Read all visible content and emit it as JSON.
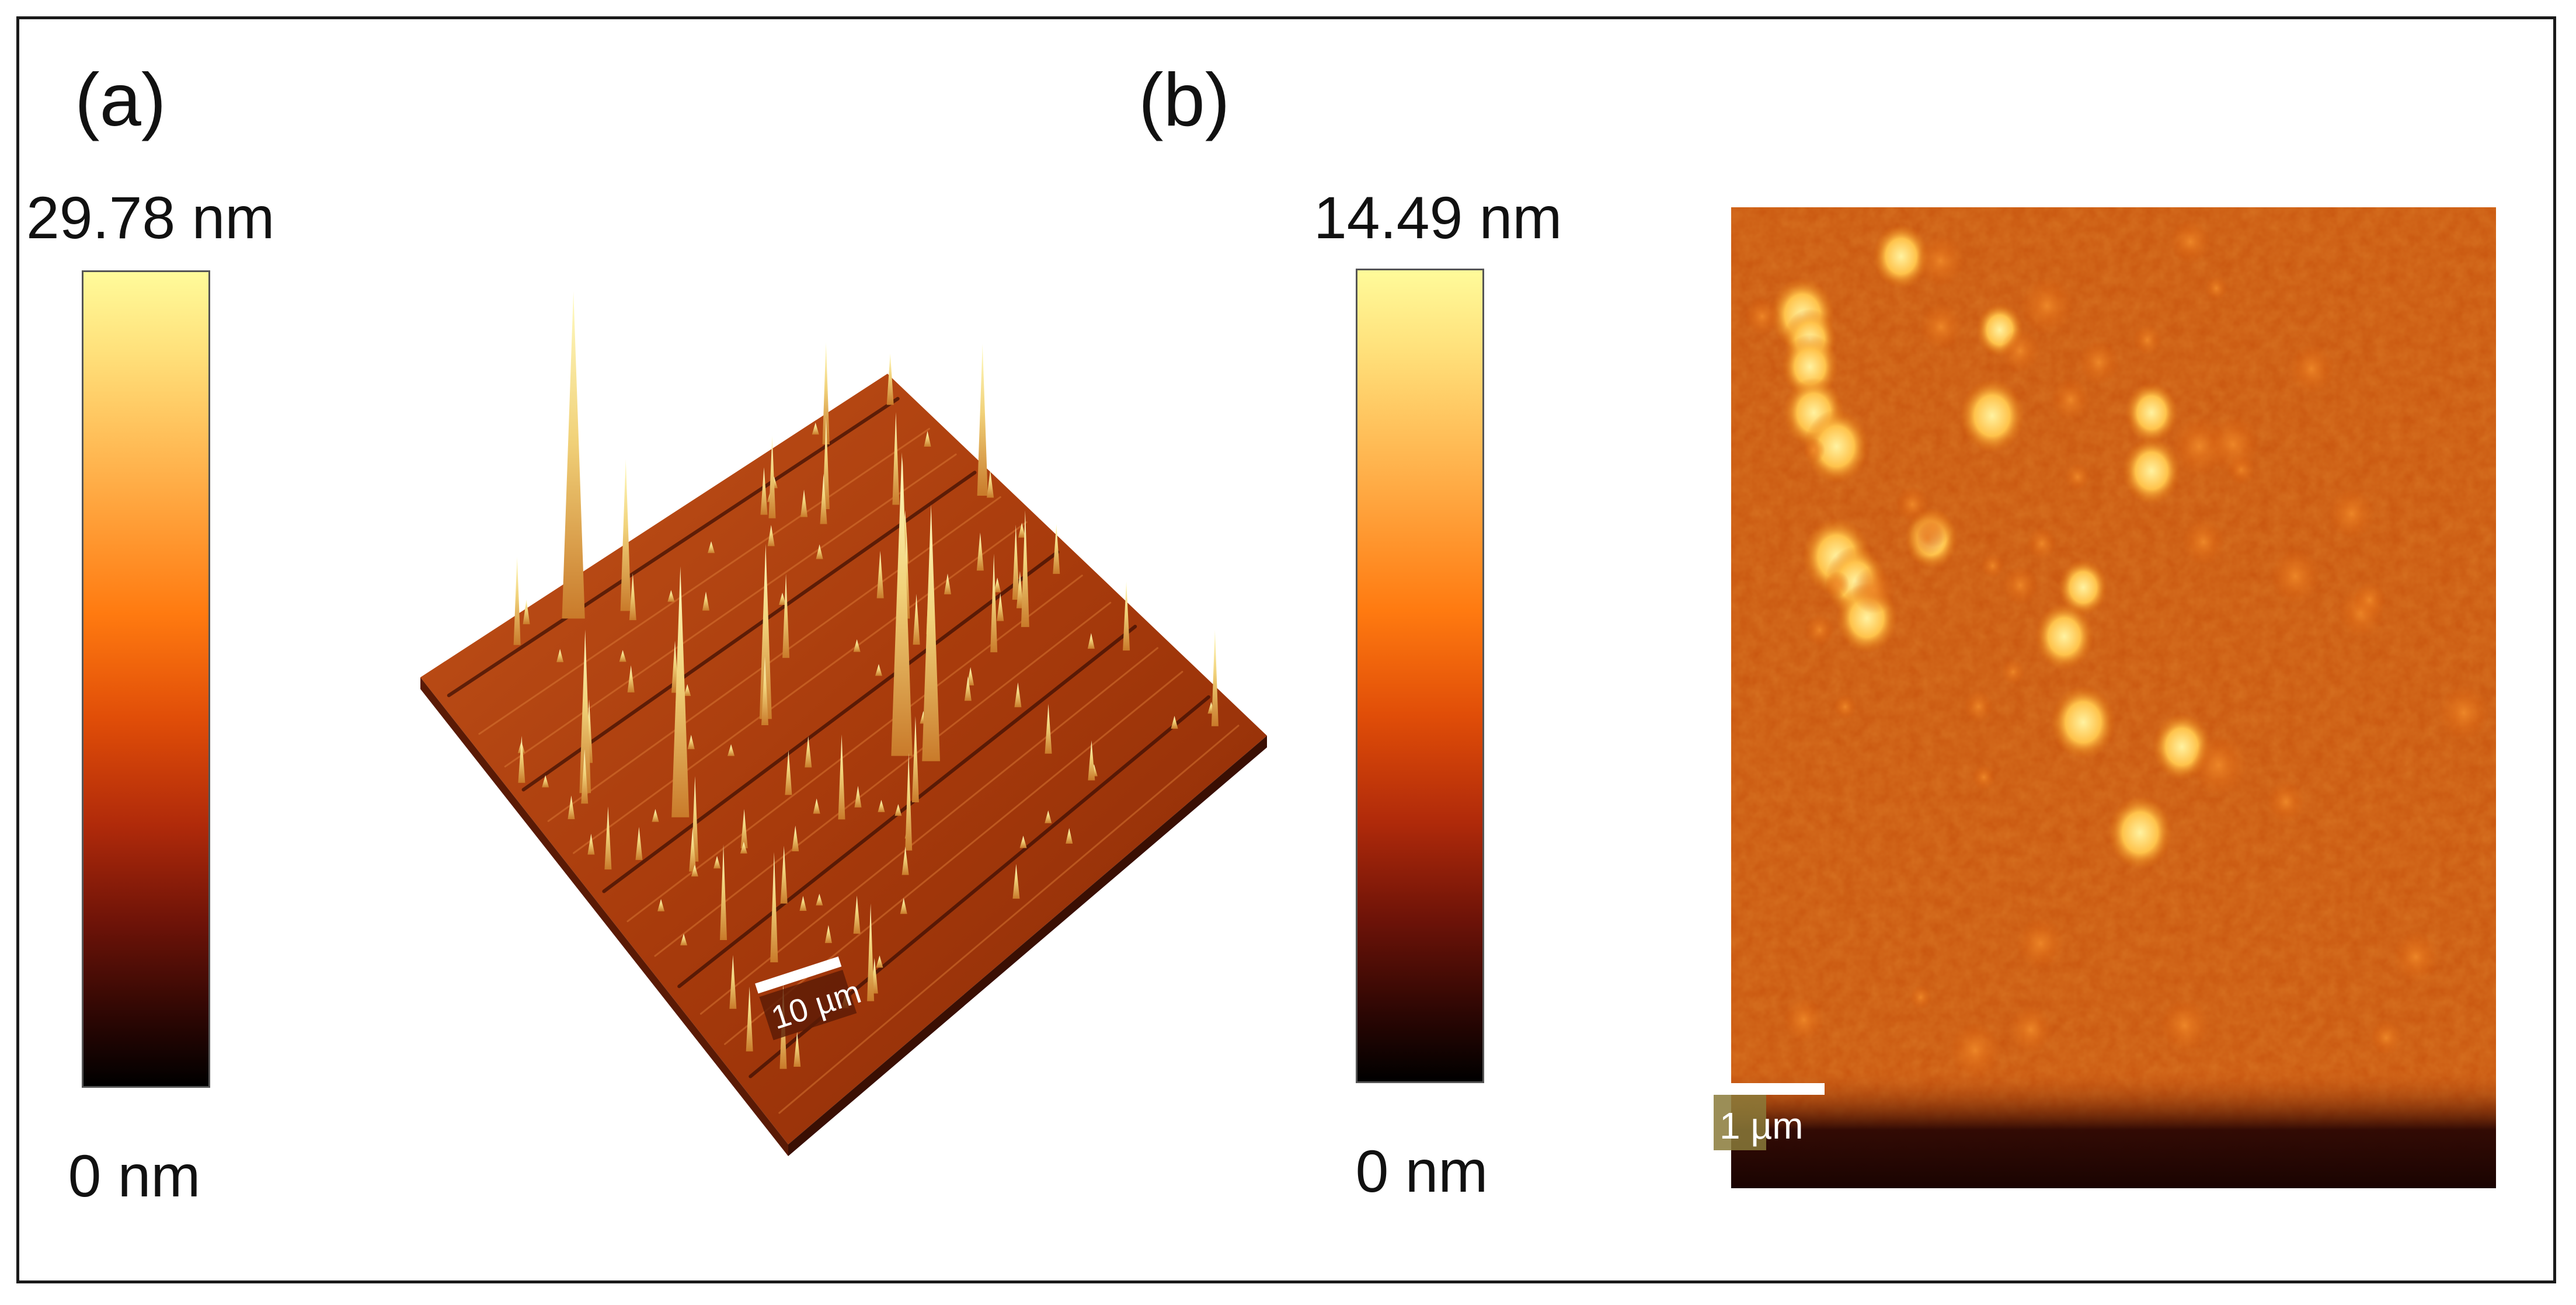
{
  "panels": [
    {
      "label": "(a)",
      "colorbar": {
        "max_label": "29.78 nm",
        "min_label": "0 nm"
      },
      "image": {
        "kind": "3D AFM topography",
        "scale_bar": "10 µm"
      }
    },
    {
      "label": "(b)",
      "colorbar": {
        "max_label": "14.49 nm",
        "min_label": "0 nm"
      },
      "image": {
        "kind": "2D AFM height map",
        "scale_bar": "1 µm"
      }
    }
  ],
  "colors": {
    "colormap": [
      "#000000",
      "#2a0603",
      "#6e1308",
      "#b02a0a",
      "#e04d08",
      "#ff7a10",
      "#ffb04a",
      "#ffe07a",
      "#fffb9a"
    ],
    "surface": "#b8460f",
    "frame": "#1a1a1a"
  }
}
